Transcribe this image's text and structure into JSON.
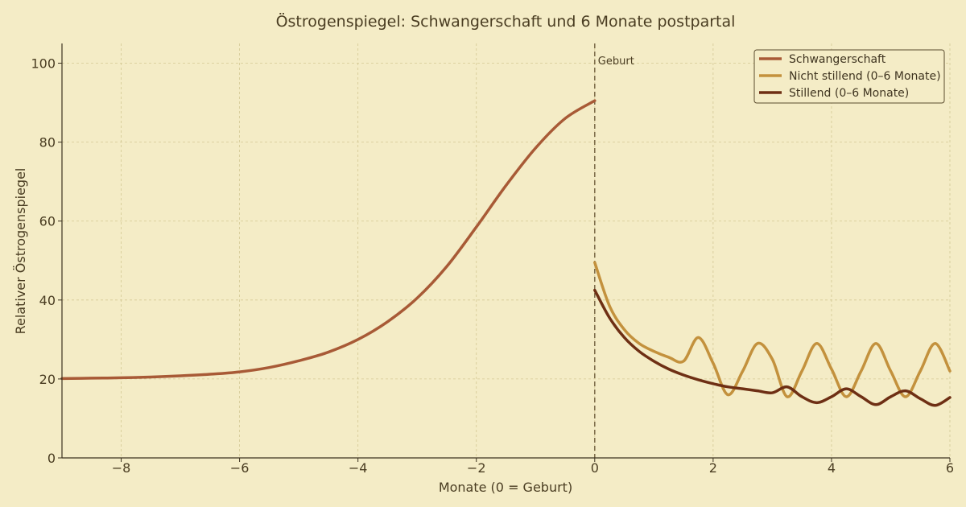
{
  "chart_data": {
    "type": "line",
    "title": "Östrogenspiegel: Schwangerschaft und 6 Monate postpartal",
    "xlabel": "Monate (0 = Geburt)",
    "ylabel": "Relativer Östrogenspiegel",
    "xlim": [
      -9,
      6
    ],
    "ylim": [
      0,
      105
    ],
    "x_ticks": [
      -8,
      -6,
      -4,
      -2,
      0,
      2,
      4,
      6
    ],
    "x_tick_labels": [
      "−8",
      "−6",
      "−4",
      "−2",
      "0",
      "2",
      "4",
      "6"
    ],
    "y_ticks": [
      0,
      20,
      40,
      60,
      80,
      100
    ],
    "y_tick_labels": [
      "0",
      "20",
      "40",
      "60",
      "80",
      "100"
    ],
    "grid": true,
    "legend_position": "top-right",
    "annotation": {
      "x": 0,
      "label": "Geburt",
      "style": "dashed"
    },
    "series": [
      {
        "name": "Schwangerschaft",
        "color": "#a85a36",
        "x": [
          -9,
          -8.5,
          -8,
          -7.5,
          -7,
          -6.5,
          -6,
          -5.5,
          -5,
          -4.5,
          -4,
          -3.5,
          -3,
          -2.5,
          -2,
          -1.5,
          -1,
          -0.5,
          0
        ],
        "y": [
          20.1,
          20.2,
          20.3,
          20.5,
          20.8,
          21.2,
          21.8,
          22.9,
          24.6,
          26.8,
          30.0,
          34.5,
          40.5,
          48.5,
          58.5,
          69.0,
          78.5,
          86.0,
          90.5
        ]
      },
      {
        "name": "Nicht stillend (0–6 Monate)",
        "color": "#c3913d",
        "x": [
          0,
          0.25,
          0.5,
          0.75,
          1.0,
          1.25,
          1.5,
          1.75,
          2.0,
          2.25,
          2.5,
          2.75,
          3.0,
          3.25,
          3.5,
          3.75,
          4.0,
          4.25,
          4.5,
          4.75,
          5.0,
          5.25,
          5.5,
          5.75,
          6.0
        ],
        "y": [
          49.5,
          38.5,
          32.5,
          29.0,
          27.0,
          25.5,
          24.5,
          30.5,
          24.0,
          16.0,
          22.0,
          29.0,
          25.0,
          15.5,
          22.0,
          29.0,
          22.5,
          15.5,
          22.0,
          29.0,
          22.0,
          15.5,
          22.0,
          29.0,
          22.0
        ]
      },
      {
        "name": "Stillend (0–6 Monate)",
        "color": "#6e2f14",
        "x": [
          0,
          0.25,
          0.5,
          0.75,
          1.0,
          1.25,
          1.5,
          1.75,
          2.0,
          2.25,
          2.5,
          2.75,
          3.0,
          3.25,
          3.5,
          3.75,
          4.0,
          4.25,
          4.5,
          4.75,
          5.0,
          5.25,
          5.5,
          5.75,
          6.0
        ],
        "y": [
          42.5,
          35.5,
          30.5,
          27.0,
          24.5,
          22.5,
          21.0,
          19.8,
          18.8,
          18.0,
          17.5,
          17.0,
          16.5,
          18.0,
          15.5,
          14.0,
          15.5,
          17.5,
          15.5,
          13.5,
          15.5,
          17.0,
          15.0,
          13.3,
          15.3
        ]
      }
    ]
  }
}
